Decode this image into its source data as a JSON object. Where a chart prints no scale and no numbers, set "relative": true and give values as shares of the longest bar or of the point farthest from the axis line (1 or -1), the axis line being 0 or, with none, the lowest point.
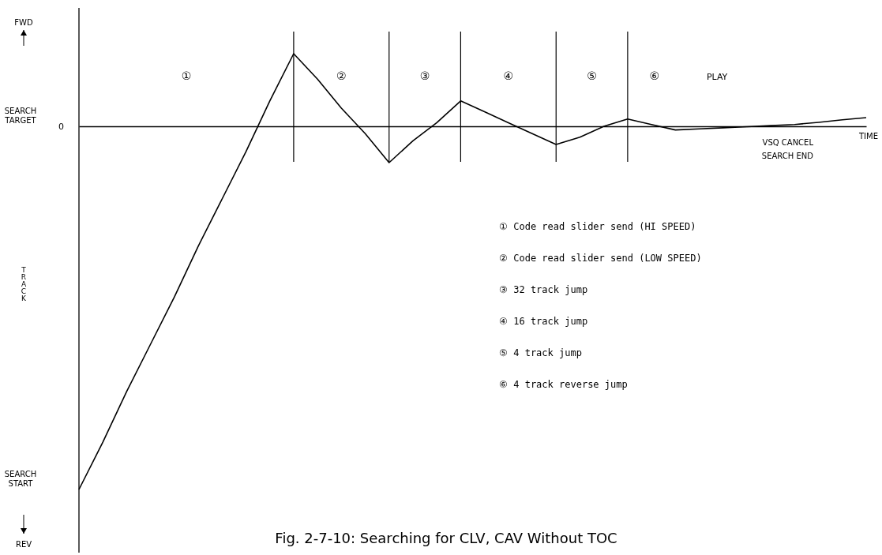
{
  "chart_data": {
    "type": "line",
    "relative": true,
    "title": "Fig. 2-7-10: Searching for CLV, CAV Without TOC",
    "xlabel": "TIME",
    "categories": [
      null,
      null,
      null,
      null,
      null,
      null,
      null,
      null,
      null,
      null,
      null,
      null,
      null,
      null,
      null,
      null,
      null,
      null,
      null,
      null,
      null,
      null,
      null,
      null,
      null,
      null,
      null,
      null,
      null,
      null,
      null,
      null,
      null,
      null
    ],
    "series": [
      {
        "color": "#000000",
        "values": [
          -1,
          -0.87,
          -0.73,
          -0.6,
          -0.47,
          -0.33,
          -0.2,
          -0.07,
          0.07,
          0.2,
          0.13,
          0.05,
          -0.02,
          -0.1,
          -0.04,
          0.01,
          0.07,
          0.04,
          0.01,
          -0.02,
          -0.05,
          -0.03,
          0,
          0.02,
          0.005,
          -0.01,
          -0.007,
          -0.004,
          -0.001,
          0.002,
          0.005,
          0.011,
          0.018,
          0.024
        ]
      }
    ],
    "annotations": [
      "FWD",
      "REV",
      "SEARCH TARGET",
      "0",
      "SEARCH START",
      "①",
      "②",
      "③",
      "④",
      "⑤",
      "⑥",
      "PLAY",
      "VSQ CANCEL",
      "SEARCH END",
      "① Code read slider send (HI SPEED)",
      "② Code read slider send (LOW SPEED)",
      "③ 32 track jump",
      "④ 16 track jump",
      "⑤ 4 track jump",
      "⑥ 4 track reverse jump",
      "TRACK"
    ],
    "line_style": "solid"
  }
}
